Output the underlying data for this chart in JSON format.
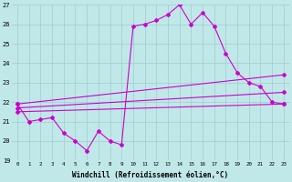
{
  "bg_color": "#c0e8e8",
  "grid_color": "#a0cccc",
  "line_color": "#cc00cc",
  "xlim": [
    -0.5,
    23.5
  ],
  "ylim": [
    19,
    27
  ],
  "yticks": [
    19,
    20,
    21,
    22,
    23,
    24,
    25,
    26,
    27
  ],
  "xticks": [
    0,
    1,
    2,
    3,
    4,
    5,
    6,
    7,
    8,
    9,
    10,
    11,
    12,
    13,
    14,
    15,
    16,
    17,
    18,
    19,
    20,
    21,
    22,
    23
  ],
  "xlabel": "Windchill (Refroidissement éolien,°C)",
  "line1_x": [
    0,
    1,
    2,
    3,
    4,
    5,
    6,
    7,
    8,
    9,
    10,
    11,
    12,
    13,
    14,
    15,
    16,
    17,
    18,
    19,
    20,
    21,
    22,
    23
  ],
  "line1_y": [
    21.9,
    21.0,
    21.1,
    21.2,
    20.4,
    20.0,
    19.5,
    20.5,
    20.0,
    19.8,
    25.9,
    26.0,
    26.2,
    26.5,
    27.0,
    26.0,
    26.6,
    25.9,
    24.5,
    23.5,
    23.0,
    22.8,
    22.0,
    21.9
  ],
  "line2_x": [
    0,
    23
  ],
  "line2_y": [
    21.5,
    21.9
  ],
  "line3_x": [
    0,
    23
  ],
  "line3_y": [
    21.7,
    22.5
  ],
  "line4_x": [
    0,
    23
  ],
  "line4_y": [
    21.9,
    23.4
  ]
}
